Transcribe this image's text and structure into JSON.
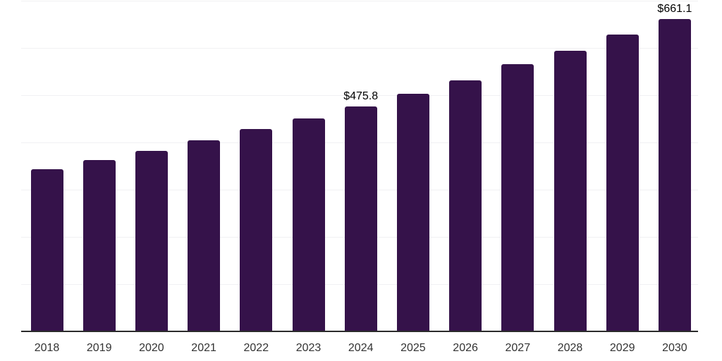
{
  "chart_data": {
    "type": "bar",
    "title": "",
    "xlabel": "",
    "ylabel": "",
    "categories": [
      "2018",
      "2019",
      "2020",
      "2021",
      "2022",
      "2023",
      "2024",
      "2025",
      "2026",
      "2027",
      "2028",
      "2029",
      "2030"
    ],
    "values": [
      344,
      362,
      382,
      404,
      429,
      451,
      475.8,
      503.5,
      532,
      565,
      594,
      628,
      661.1
    ],
    "data_labels": [
      {
        "category": "2024",
        "text": "$475.8"
      },
      {
        "category": "2030",
        "text": "$661.1"
      }
    ],
    "ylim": [
      0,
      700
    ],
    "grid_step": 100,
    "grid": true,
    "legend_position": "none",
    "colors": {
      "bar": "#35124a",
      "gridline": "#f1f1f3",
      "axis": "#2b2b2b",
      "tick_label": "#333333",
      "data_label": "#000000"
    }
  }
}
